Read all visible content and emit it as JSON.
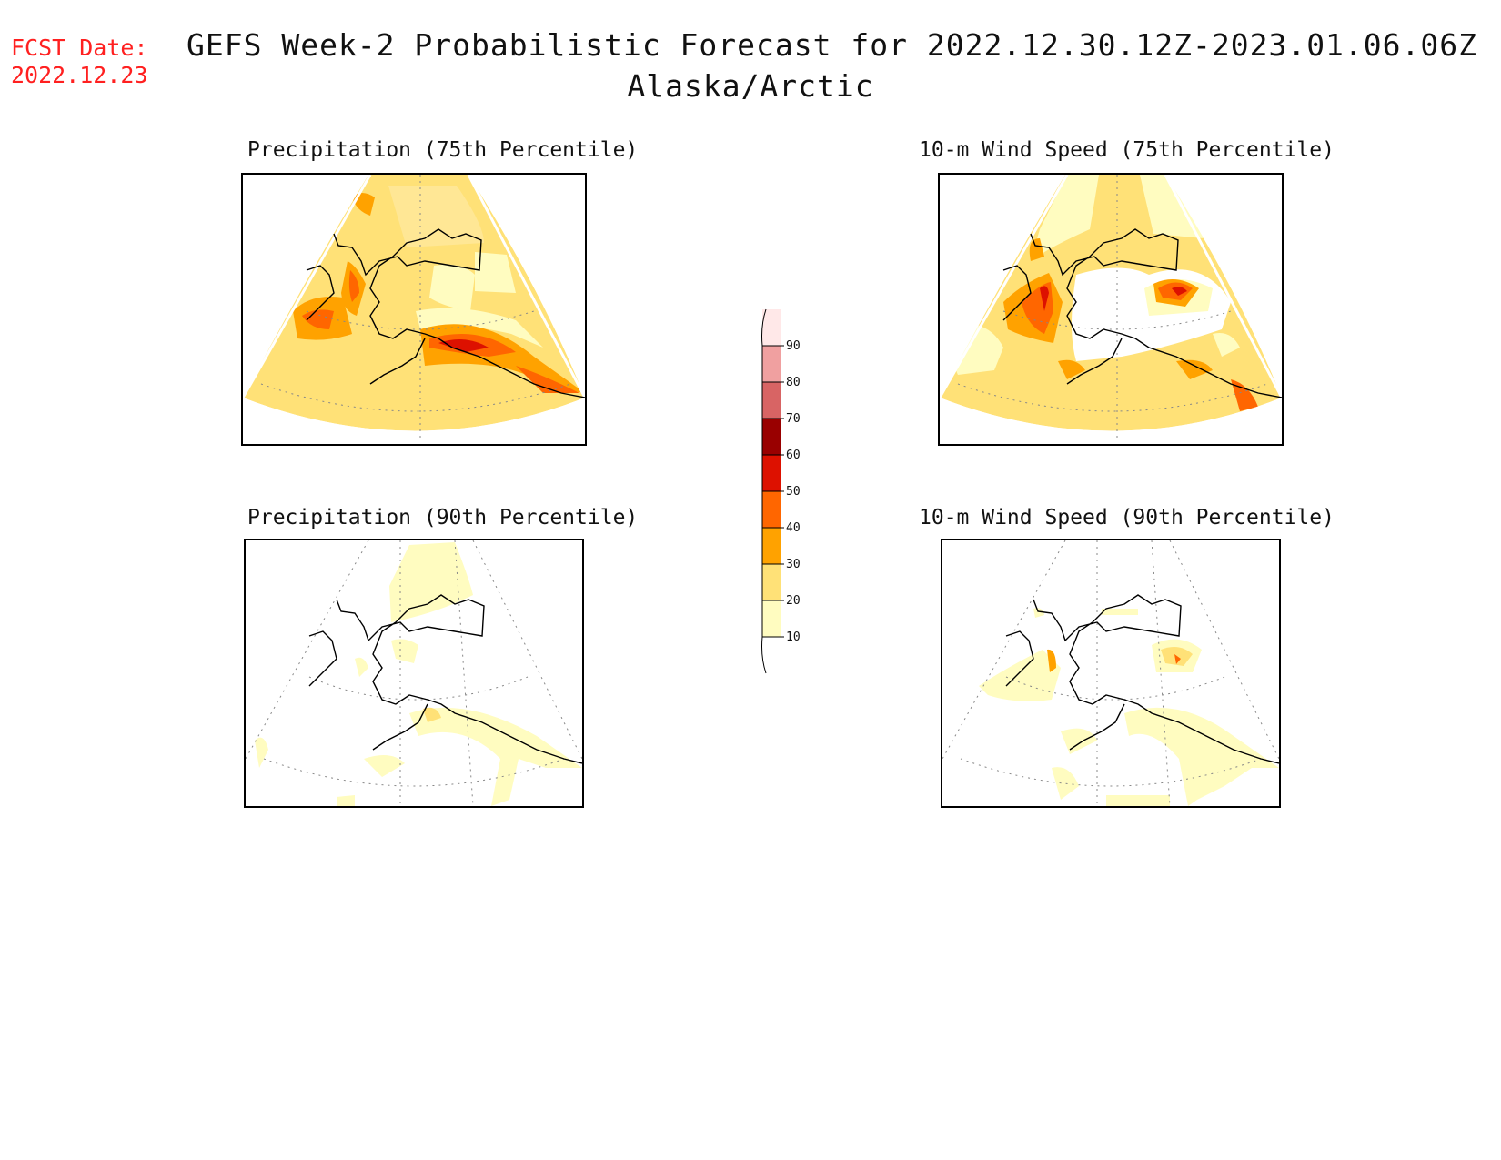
{
  "fcst": {
    "label": "FCST Date:",
    "date": "2022.12.23"
  },
  "header": {
    "title": "GEFS Week-2 Probabilistic Forecast for 2022.12.30.12Z-2023.01.06.06Z",
    "subtitle": "Alaska/Arctic"
  },
  "panels": [
    {
      "title": "Precipitation (75th Percentile)"
    },
    {
      "title": "10-m Wind Speed (75th Percentile)"
    },
    {
      "title": "Precipitation (90th Percentile)"
    },
    {
      "title": "10-m Wind Speed (90th Percentile)"
    }
  ],
  "legend": {
    "levels": [
      "10",
      "20",
      "30",
      "40",
      "50",
      "60",
      "70",
      "80",
      "90"
    ],
    "colors": [
      "#fffcc0",
      "#ffe177",
      "#ffa200",
      "#ff6600",
      "#dd1100",
      "#990000",
      "#d86464",
      "#f0a0a0",
      "#ffe8e8"
    ]
  }
}
